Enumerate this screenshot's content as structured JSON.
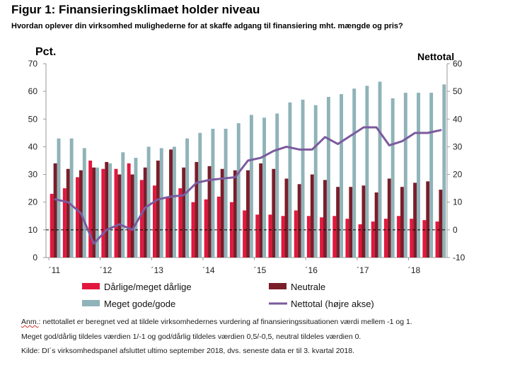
{
  "title": "Figur 1: Finansieringsklimaet holder niveau",
  "subtitle": "Hvordan oplever din virksomhed mulighederne for at skaffe adgang til finansiering mht. mængde og pris?",
  "notes": {
    "anm_label": "Anm.",
    "line1_rest": ": nettotallet er beregnet ved at tildele virksomhedernes vurdering af finansieringssituationen værdi mellem -1 og 1.",
    "line2": "Meget god/dårlig tildeles værdien 1/-1 og god/dårlig tildeles værdien 0,5/-0,5, neutral tildeles værdien 0.",
    "line3": "Kilde: DI´s virksomhedspanel afsluttet ultimo september 2018, dvs. seneste data er til 3. kvartal 2018."
  },
  "colors": {
    "bad": "#e3173e",
    "neutral": "#7a1e2a",
    "good": "#8fb3b8",
    "net": "#7b5a9e"
  },
  "chart_data": {
    "type": "bar",
    "y_left_label": "Pct.",
    "y_right_label": "Nettotal",
    "ylim_left": [
      0,
      70
    ],
    "ylim_right": [
      -10,
      60
    ],
    "yticks_left": [
      "0",
      "10",
      "20",
      "30",
      "40",
      "50",
      "60",
      "70"
    ],
    "yticks_right": [
      "-10",
      "0",
      "10",
      "20",
      "30",
      "40",
      "50",
      "60"
    ],
    "x_tick_labels": [
      "´11",
      "´12",
      "´13",
      "´14",
      "´15",
      "´16",
      "´17",
      "´18"
    ],
    "grid": false,
    "legend_position": "bottom",
    "series": [
      {
        "name": "Dårlige/meget dårlige",
        "axis": "left",
        "values": [
          23,
          25,
          29,
          35,
          32,
          32,
          34,
          28,
          26,
          22,
          25,
          20,
          21,
          22,
          20,
          17,
          15.5,
          15.5,
          15,
          17,
          15,
          14.5,
          15,
          14,
          12,
          13,
          14,
          15,
          14,
          13.5,
          13
        ]
      },
      {
        "name": "Neutrale",
        "axis": "left",
        "values": [
          34,
          32,
          31.5,
          32.5,
          34.5,
          30,
          30,
          32.5,
          35,
          39,
          32.5,
          34.5,
          33,
          32,
          31.5,
          31.5,
          34,
          32,
          28.5,
          26.5,
          30,
          28,
          25.5,
          25.5,
          26,
          23.5,
          28.5,
          25.5,
          27,
          27.5,
          24.5
        ]
      },
      {
        "name": "Meget gode/gode",
        "axis": "left",
        "values": [
          43,
          43,
          39.5,
          32.5,
          34,
          38,
          36,
          40,
          39.5,
          40,
          43,
          45,
          46.5,
          46.5,
          48.5,
          51.5,
          50.5,
          52,
          56,
          57,
          55,
          58,
          59,
          61,
          62,
          63.5,
          57.5,
          59.5,
          59.5,
          59.5,
          62.5
        ]
      },
      {
        "name": "Nettotal (højre akse)",
        "axis": "right",
        "type": "line",
        "values": [
          11,
          10,
          6,
          -5,
          0,
          2,
          0,
          8,
          11,
          12,
          12.5,
          17,
          18,
          18.5,
          19,
          25,
          26,
          28.5,
          30,
          29,
          29,
          33.5,
          31,
          34,
          37,
          37,
          30.5,
          32,
          35,
          35,
          36
        ]
      }
    ]
  }
}
